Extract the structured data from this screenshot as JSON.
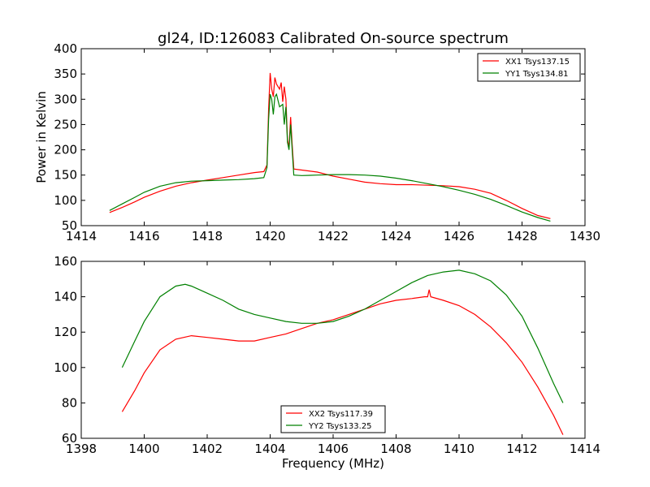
{
  "title": "gl24, ID:126083 Calibrated On-source spectrum",
  "chart_data": [
    {
      "type": "line",
      "title": "gl24, ID:126083 Calibrated On-source spectrum",
      "xlabel": "",
      "ylabel": "Power in Kelvin",
      "xlim": [
        1414,
        1430
      ],
      "ylim": [
        50,
        400
      ],
      "xticks": [
        1414,
        1416,
        1418,
        1420,
        1422,
        1424,
        1426,
        1428,
        1430
      ],
      "yticks": [
        50,
        100,
        150,
        200,
        250,
        300,
        350,
        400
      ],
      "grid": false,
      "legend_position": "top-right",
      "series": [
        {
          "name": "XX1 Tsys137.15",
          "color": "#ff0000",
          "points": [
            [
              1414.9,
              76
            ],
            [
              1415.3,
              86
            ],
            [
              1415.7,
              97
            ],
            [
              1416.0,
              106
            ],
            [
              1416.5,
              118
            ],
            [
              1417.0,
              128
            ],
            [
              1417.5,
              135
            ],
            [
              1418.0,
              140
            ],
            [
              1418.5,
              145
            ],
            [
              1419.0,
              150
            ],
            [
              1419.5,
              155
            ],
            [
              1419.8,
              157
            ],
            [
              1419.9,
              170
            ],
            [
              1419.95,
              280
            ],
            [
              1420.0,
              352
            ],
            [
              1420.05,
              320
            ],
            [
              1420.1,
              305
            ],
            [
              1420.15,
              343
            ],
            [
              1420.2,
              330
            ],
            [
              1420.3,
              320
            ],
            [
              1420.35,
              333
            ],
            [
              1420.4,
              295
            ],
            [
              1420.45,
              325
            ],
            [
              1420.5,
              300
            ],
            [
              1420.55,
              220
            ],
            [
              1420.6,
              205
            ],
            [
              1420.65,
              265
            ],
            [
              1420.7,
              210
            ],
            [
              1420.75,
              162
            ],
            [
              1421.0,
              160
            ],
            [
              1421.5,
              156
            ],
            [
              1422.0,
              148
            ],
            [
              1422.5,
              142
            ],
            [
              1423.0,
              136
            ],
            [
              1423.5,
              133
            ],
            [
              1424.0,
              131
            ],
            [
              1424.5,
              131
            ],
            [
              1425.0,
              130
            ],
            [
              1425.5,
              129
            ],
            [
              1426.0,
              127
            ],
            [
              1426.5,
              122
            ],
            [
              1427.0,
              114
            ],
            [
              1427.5,
              100
            ],
            [
              1428.0,
              84
            ],
            [
              1428.5,
              70
            ],
            [
              1428.9,
              64
            ]
          ]
        },
        {
          "name": "YY1 Tsys134.81",
          "color": "#008000",
          "points": [
            [
              1414.9,
              80
            ],
            [
              1415.3,
              93
            ],
            [
              1415.7,
              106
            ],
            [
              1416.0,
              116
            ],
            [
              1416.5,
              128
            ],
            [
              1417.0,
              135
            ],
            [
              1417.5,
              138
            ],
            [
              1418.0,
              139
            ],
            [
              1418.5,
              140
            ],
            [
              1419.0,
              141
            ],
            [
              1419.5,
              143
            ],
            [
              1419.8,
              145
            ],
            [
              1419.9,
              165
            ],
            [
              1419.95,
              260
            ],
            [
              1420.0,
              310
            ],
            [
              1420.05,
              300
            ],
            [
              1420.1,
              270
            ],
            [
              1420.15,
              305
            ],
            [
              1420.2,
              310
            ],
            [
              1420.3,
              285
            ],
            [
              1420.4,
              290
            ],
            [
              1420.45,
              250
            ],
            [
              1420.5,
              285
            ],
            [
              1420.55,
              215
            ],
            [
              1420.6,
              200
            ],
            [
              1420.65,
              250
            ],
            [
              1420.7,
              200
            ],
            [
              1420.75,
              150
            ],
            [
              1421.0,
              149
            ],
            [
              1421.5,
              150
            ],
            [
              1422.0,
              151
            ],
            [
              1422.5,
              151
            ],
            [
              1423.0,
              150
            ],
            [
              1423.5,
              148
            ],
            [
              1424.0,
              144
            ],
            [
              1424.5,
              139
            ],
            [
              1425.0,
              133
            ],
            [
              1425.5,
              127
            ],
            [
              1426.0,
              120
            ],
            [
              1426.5,
              112
            ],
            [
              1427.0,
              102
            ],
            [
              1427.5,
              90
            ],
            [
              1428.0,
              77
            ],
            [
              1428.5,
              66
            ],
            [
              1428.9,
              59
            ]
          ]
        }
      ]
    },
    {
      "type": "line",
      "title": "",
      "xlabel": "Frequency (MHz)",
      "ylabel": "",
      "xlim": [
        1398,
        1414
      ],
      "ylim": [
        60,
        160
      ],
      "xticks": [
        1398,
        1400,
        1402,
        1404,
        1406,
        1408,
        1410,
        1412,
        1414
      ],
      "yticks": [
        60,
        80,
        100,
        120,
        140,
        160
      ],
      "grid": false,
      "legend_position": "bottom-center",
      "series": [
        {
          "name": "XX2 Tsys117.39",
          "color": "#ff0000",
          "points": [
            [
              1399.3,
              75
            ],
            [
              1399.7,
              87
            ],
            [
              1400.0,
              97
            ],
            [
              1400.5,
              110
            ],
            [
              1401.0,
              116
            ],
            [
              1401.5,
              118
            ],
            [
              1402.0,
              117
            ],
            [
              1402.5,
              116
            ],
            [
              1403.0,
              115
            ],
            [
              1403.5,
              115
            ],
            [
              1404.0,
              117
            ],
            [
              1404.5,
              119
            ],
            [
              1405.0,
              122
            ],
            [
              1405.5,
              125
            ],
            [
              1406.0,
              127
            ],
            [
              1406.5,
              130
            ],
            [
              1407.0,
              133
            ],
            [
              1407.5,
              136
            ],
            [
              1408.0,
              138
            ],
            [
              1408.5,
              139
            ],
            [
              1408.9,
              140
            ],
            [
              1409.0,
              140
            ],
            [
              1409.05,
              144
            ],
            [
              1409.1,
              140
            ],
            [
              1409.5,
              138
            ],
            [
              1410.0,
              135
            ],
            [
              1410.5,
              130
            ],
            [
              1411.0,
              123
            ],
            [
              1411.5,
              114
            ],
            [
              1412.0,
              103
            ],
            [
              1412.5,
              89
            ],
            [
              1413.0,
              73
            ],
            [
              1413.3,
              62
            ]
          ]
        },
        {
          "name": "YY2 Tsys133.25",
          "color": "#008000",
          "points": [
            [
              1399.3,
              100
            ],
            [
              1399.7,
              115
            ],
            [
              1400.0,
              126
            ],
            [
              1400.5,
              140
            ],
            [
              1401.0,
              146
            ],
            [
              1401.3,
              147
            ],
            [
              1401.5,
              146
            ],
            [
              1402.0,
              142
            ],
            [
              1402.5,
              138
            ],
            [
              1403.0,
              133
            ],
            [
              1403.5,
              130
            ],
            [
              1404.0,
              128
            ],
            [
              1404.5,
              126
            ],
            [
              1405.0,
              125
            ],
            [
              1405.5,
              125
            ],
            [
              1406.0,
              126
            ],
            [
              1406.5,
              129
            ],
            [
              1407.0,
              133
            ],
            [
              1407.5,
              138
            ],
            [
              1408.0,
              143
            ],
            [
              1408.5,
              148
            ],
            [
              1409.0,
              152
            ],
            [
              1409.5,
              154
            ],
            [
              1410.0,
              155
            ],
            [
              1410.5,
              153
            ],
            [
              1411.0,
              149
            ],
            [
              1411.5,
              141
            ],
            [
              1412.0,
              129
            ],
            [
              1412.5,
              111
            ],
            [
              1413.0,
              91
            ],
            [
              1413.3,
              80
            ]
          ]
        }
      ]
    }
  ]
}
